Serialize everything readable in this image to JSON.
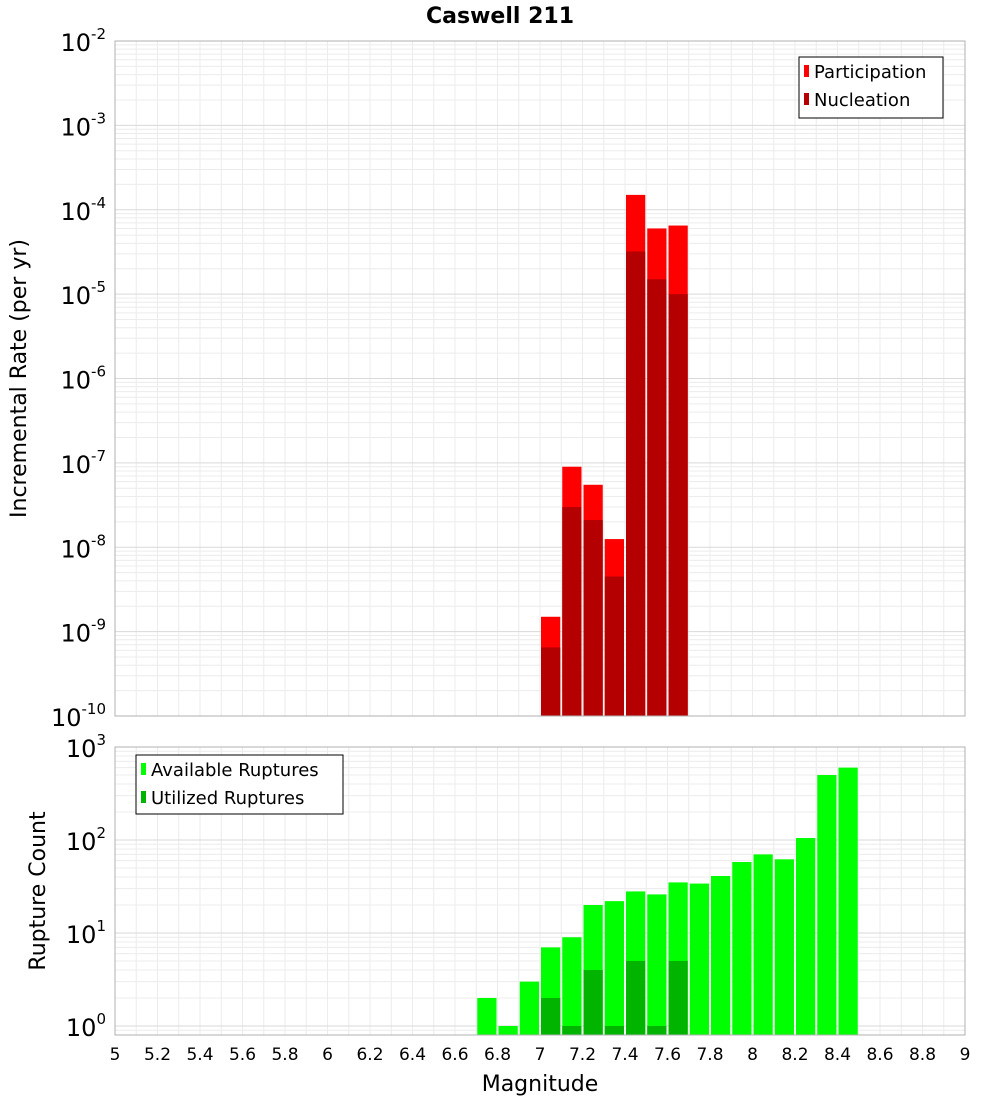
{
  "title": "Caswell 211",
  "xlabel": "Magnitude",
  "x_ticks": [
    5,
    5.2,
    5.4,
    5.6,
    5.8,
    6,
    6.2,
    6.4,
    6.6,
    6.8,
    7,
    7.2,
    7.4,
    7.6,
    7.8,
    8,
    8.2,
    8.4,
    8.6,
    8.8,
    9
  ],
  "chart_data": [
    {
      "type": "bar",
      "ylabel": "Incremental Rate (per yr)",
      "xlim": [
        5,
        9
      ],
      "ylim": [
        1e-10,
        0.01
      ],
      "yscale": "log",
      "y_tick_exponents": [
        -2,
        -3,
        -4,
        -5,
        -6,
        -7,
        -8,
        -9,
        -10
      ],
      "bar_width": 0.1,
      "legend_position": "top-right",
      "grid": true,
      "series": [
        {
          "name": "Participation",
          "color": "#ff0000",
          "points": [
            {
              "x": 7.05,
              "y": 1.5e-09
            },
            {
              "x": 7.15,
              "y": 9e-08
            },
            {
              "x": 7.25,
              "y": 5.5e-08
            },
            {
              "x": 7.35,
              "y": 1.25e-08
            },
            {
              "x": 7.45,
              "y": 0.00015
            },
            {
              "x": 7.55,
              "y": 6e-05
            },
            {
              "x": 7.65,
              "y": 6.5e-05
            }
          ]
        },
        {
          "name": "Nucleation",
          "color": "#b40000",
          "points": [
            {
              "x": 7.05,
              "y": 6.5e-10
            },
            {
              "x": 7.15,
              "y": 3e-08
            },
            {
              "x": 7.25,
              "y": 2.1e-08
            },
            {
              "x": 7.35,
              "y": 4.5e-09
            },
            {
              "x": 7.45,
              "y": 3.2e-05
            },
            {
              "x": 7.55,
              "y": 1.5e-05
            },
            {
              "x": 7.65,
              "y": 1e-05
            }
          ]
        }
      ]
    },
    {
      "type": "bar",
      "ylabel": "Rupture Count",
      "xlim": [
        5,
        9
      ],
      "ylim": [
        0.8,
        1000
      ],
      "yscale": "log",
      "y_tick_exponents": [
        3,
        2,
        1,
        0
      ],
      "bar_width": 0.1,
      "legend_position": "top-left",
      "grid": true,
      "series": [
        {
          "name": "Available Ruptures",
          "color": "#00ff00",
          "points": [
            {
              "x": 6.75,
              "y": 2
            },
            {
              "x": 6.85,
              "y": 1
            },
            {
              "x": 6.95,
              "y": 3
            },
            {
              "x": 7.05,
              "y": 7
            },
            {
              "x": 7.15,
              "y": 9
            },
            {
              "x": 7.25,
              "y": 20
            },
            {
              "x": 7.35,
              "y": 22
            },
            {
              "x": 7.45,
              "y": 28
            },
            {
              "x": 7.55,
              "y": 26
            },
            {
              "x": 7.65,
              "y": 35
            },
            {
              "x": 7.75,
              "y": 34
            },
            {
              "x": 7.85,
              "y": 41
            },
            {
              "x": 7.95,
              "y": 58
            },
            {
              "x": 8.05,
              "y": 70
            },
            {
              "x": 8.15,
              "y": 62
            },
            {
              "x": 8.25,
              "y": 105
            },
            {
              "x": 8.35,
              "y": 500
            },
            {
              "x": 8.45,
              "y": 600
            }
          ]
        },
        {
          "name": "Utilized Ruptures",
          "color": "#00b400",
          "points": [
            {
              "x": 7.05,
              "y": 2
            },
            {
              "x": 7.15,
              "y": 1
            },
            {
              "x": 7.25,
              "y": 4
            },
            {
              "x": 7.35,
              "y": 1
            },
            {
              "x": 7.45,
              "y": 5
            },
            {
              "x": 7.55,
              "y": 1
            },
            {
              "x": 7.65,
              "y": 5
            }
          ]
        }
      ]
    }
  ]
}
